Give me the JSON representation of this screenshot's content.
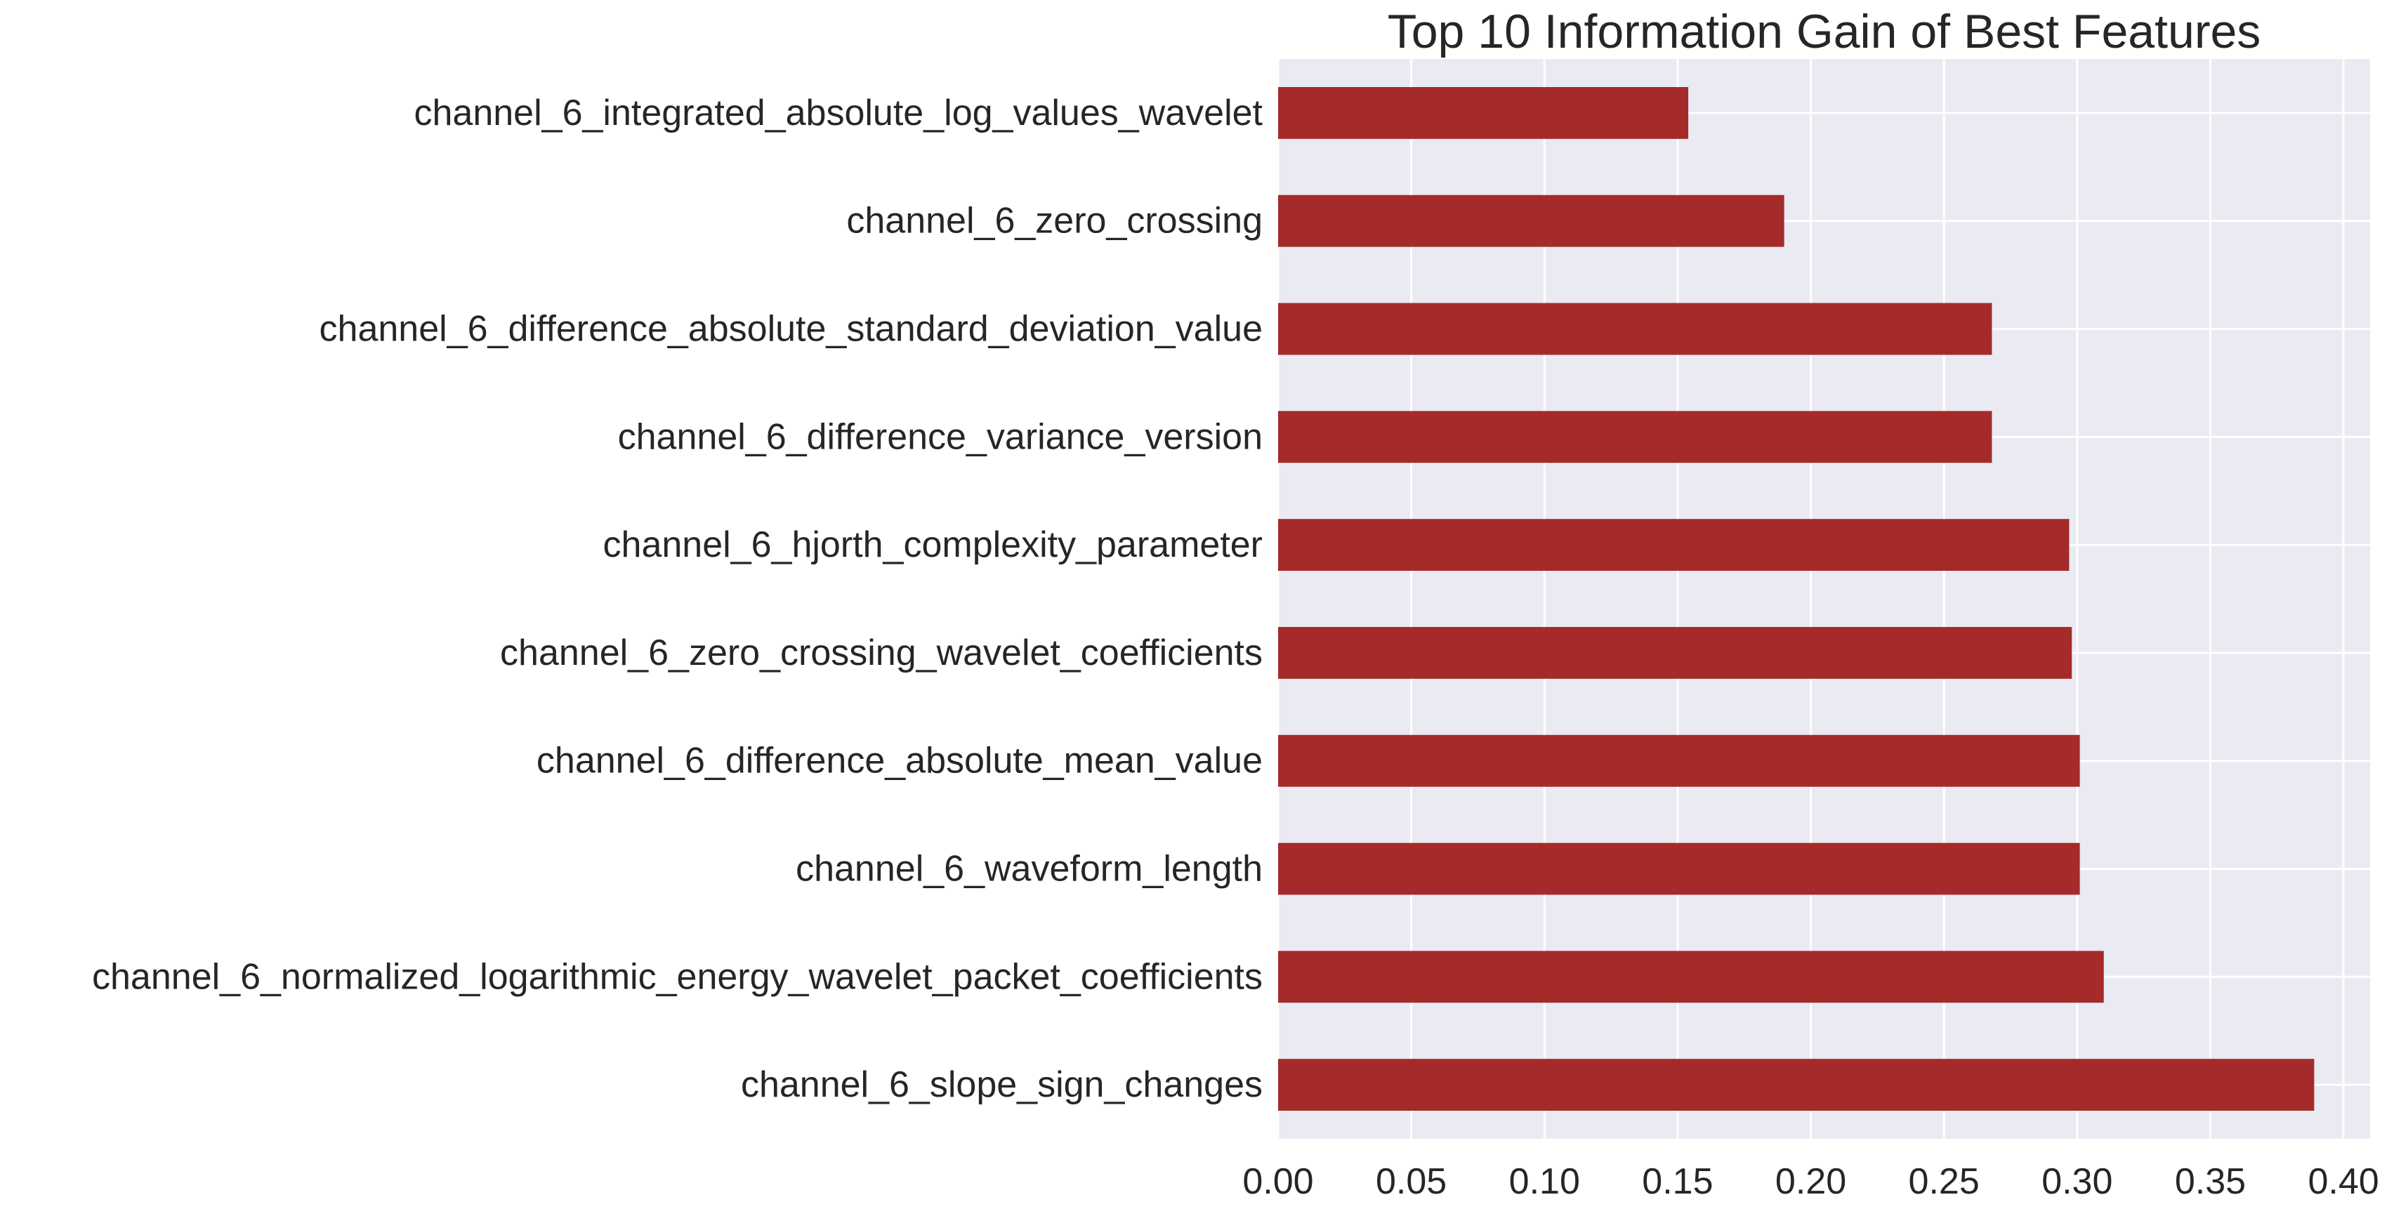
{
  "chart_data": {
    "type": "bar",
    "orientation": "horizontal",
    "title": "Top 10 Information Gain of Best Features",
    "xlabel": "",
    "ylabel": "",
    "categories": [
      "channel_6_integrated_absolute_log_values_wavelet",
      "channel_6_zero_crossing",
      "channel_6_difference_absolute_standard_deviation_value",
      "channel_6_difference_variance_version",
      "channel_6_hjorth_complexity_parameter",
      "channel_6_zero_crossing_wavelet_coefficients",
      "channel_6_difference_absolute_mean_value",
      "channel_6_waveform_length",
      "channel_6_normalized_logarithmic_energy_wavelet_packet_coefficients",
      "channel_6_slope_sign_changes"
    ],
    "values": [
      0.154,
      0.19,
      0.268,
      0.268,
      0.297,
      0.298,
      0.301,
      0.301,
      0.31,
      0.389
    ],
    "xlim": [
      0,
      0.41
    ],
    "xticks": [
      "0.00",
      "0.05",
      "0.10",
      "0.15",
      "0.20",
      "0.25",
      "0.30",
      "0.35",
      "0.40"
    ],
    "grid": true,
    "bar_color": "#a52a2a",
    "plot_background": "#eaeaf2",
    "grid_color": "#ffffff"
  }
}
